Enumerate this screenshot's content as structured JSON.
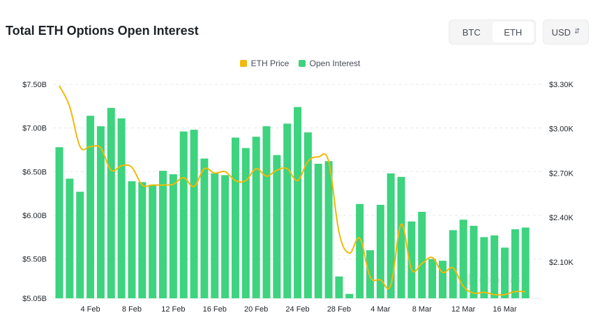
{
  "header": {
    "title": "Total ETH Options Open Interest",
    "toggle": [
      {
        "label": "BTC",
        "active": false
      },
      {
        "label": "ETH",
        "active": true
      }
    ],
    "currency": "USD"
  },
  "colors": {
    "bar": "#3dd37f",
    "price": "#f0b90b",
    "grid": "#e6e8ea",
    "axis_text": "#1e2329"
  },
  "watermark": "coinglass",
  "chart_data": {
    "type": "bar",
    "legend": [
      "ETH Price",
      "Open Interest"
    ],
    "legend_position": "top-center",
    "grid": true,
    "x_tick_labels": [
      "4 Feb",
      "8 Feb",
      "12 Feb",
      "16 Feb",
      "20 Feb",
      "24 Feb",
      "28 Feb",
      "4 Mar",
      "8 Mar",
      "12 Mar",
      "16 Mar"
    ],
    "y_left": {
      "ticks": [
        5.05,
        5.5,
        6.0,
        6.5,
        7.0,
        7.5
      ],
      "tick_labels": [
        "$5.05B",
        "$5.50B",
        "$6.00B",
        "$6.50B",
        "$7.00B",
        "$7.50B"
      ],
      "ylim": [
        5.05,
        7.5
      ]
    },
    "y_right": {
      "ticks": [
        2100,
        2400,
        2700,
        3000,
        3300
      ],
      "tick_labels": [
        "$2.10K",
        "$2.40K",
        "$2.70K",
        "$3.00K",
        "$3.30K"
      ],
      "ylim": [
        1855,
        3300
      ]
    },
    "series": [
      {
        "name": "Open Interest",
        "type": "bar",
        "axis": "left",
        "values": [
          6.78,
          6.42,
          6.27,
          7.14,
          7.02,
          7.23,
          7.11,
          6.39,
          6.38,
          6.35,
          6.51,
          6.47,
          6.96,
          6.98,
          6.65,
          6.48,
          6.46,
          6.89,
          6.77,
          6.9,
          7.02,
          6.69,
          7.05,
          7.24,
          6.95,
          6.59,
          6.62,
          5.3,
          5.1,
          6.13,
          5.6,
          6.12,
          6.48,
          6.44,
          5.93,
          6.04,
          5.5,
          5.48,
          5.83,
          5.95,
          5.88,
          5.75,
          5.77,
          5.63,
          5.84,
          5.86
        ]
      },
      {
        "name": "ETH Price",
        "type": "line",
        "axis": "right",
        "values": [
          3290,
          3150,
          2880,
          2880,
          2870,
          2720,
          2750,
          2740,
          2620,
          2620,
          2620,
          2625,
          2670,
          2610,
          2730,
          2700,
          2710,
          2650,
          2650,
          2730,
          2680,
          2720,
          2730,
          2650,
          2780,
          2810,
          2780,
          2300,
          2160,
          2260,
          2000,
          1980,
          1945,
          2355,
          2050,
          2090,
          2130,
          2030,
          2060,
          1935,
          1890,
          1895,
          1880,
          1880,
          1900,
          1900
        ]
      }
    ]
  }
}
